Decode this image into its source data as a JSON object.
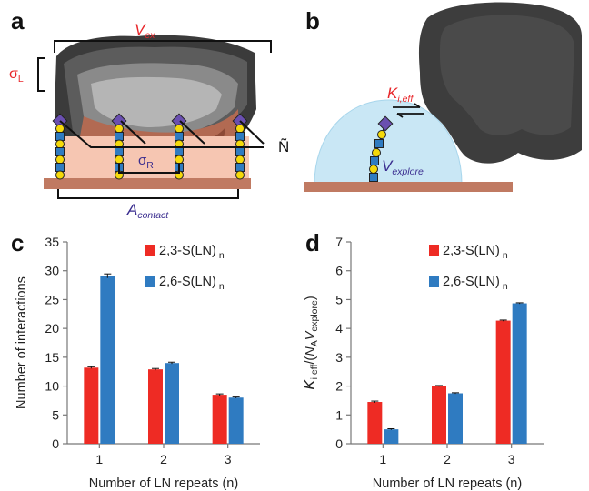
{
  "panels": {
    "a": {
      "label": "a",
      "v_ex": {
        "main": "V",
        "sub": "ex"
      },
      "sigma_l": {
        "main": "σ",
        "sub": "L"
      },
      "sigma_r": {
        "main": "σ",
        "sub": "R"
      },
      "n_tilde": "Ñ",
      "a_contact": {
        "main": "A",
        "sub": "contact"
      }
    },
    "b": {
      "label": "b",
      "k_ieff": {
        "main": "K",
        "sub": "i,eff"
      },
      "v_explore": {
        "main": "V",
        "sub": "explore"
      }
    },
    "c": {
      "label": "c"
    },
    "d": {
      "label": "d"
    }
  },
  "colors": {
    "series1": "#ee2b24",
    "series2": "#2f7bc1",
    "surface": "#c07a62",
    "contact_zone": "#f6c6b2",
    "dome": "#c9e7f5",
    "label_red": "#e8262a",
    "label_purple": "#3a2d8f",
    "protein": "#3a3a3a"
  },
  "icons": [
    "sialic-acid-diamond-icon",
    "galactose-circle-icon",
    "glcnac-square-icon"
  ],
  "chart_data": [
    {
      "type": "bar",
      "panel": "c",
      "categories": [
        "1",
        "2",
        "3"
      ],
      "series": [
        {
          "name": "2,3-S(LN)",
          "name_sub": "n",
          "values": [
            13.2,
            12.9,
            8.5
          ],
          "errors": [
            0.15,
            0.15,
            0.15
          ]
        },
        {
          "name": "2,6-S(LN)",
          "name_sub": "n",
          "values": [
            29.1,
            14.0,
            8.0
          ],
          "errors": [
            0.35,
            0.15,
            0.1
          ]
        }
      ],
      "xlabel": "Number of LN repeats (n)",
      "ylabel": "Number of interactions",
      "ylim": [
        0,
        35
      ],
      "yticks": [
        0,
        5,
        10,
        15,
        20,
        25,
        30,
        35
      ],
      "legend": "top-right",
      "grid": false
    },
    {
      "type": "bar",
      "panel": "d",
      "categories": [
        "1",
        "2",
        "3"
      ],
      "series": [
        {
          "name": "2,3-S(LN)",
          "name_sub": "n",
          "values": [
            1.45,
            2.0,
            4.27
          ],
          "errors": [
            0.03,
            0.02,
            0.02
          ]
        },
        {
          "name": "2,6-S(LN)",
          "name_sub": "n",
          "values": [
            0.5,
            1.75,
            4.87
          ],
          "errors": [
            0.02,
            0.02,
            0.02
          ]
        }
      ],
      "xlabel": "Number of LN repeats (n)",
      "ylabel": "K_i,eff/(N_A V_explore)",
      "ylabel_parts": {
        "k": "K",
        "k_sub": "i,eff",
        "mid": "/(",
        "na": "N",
        "na_sub": "A",
        "v": "V",
        "v_sub": "explore",
        "end": ")"
      },
      "ylim": [
        0,
        7
      ],
      "yticks": [
        0,
        1,
        2,
        3,
        4,
        5,
        6,
        7
      ],
      "legend": "top-right",
      "grid": false
    }
  ]
}
